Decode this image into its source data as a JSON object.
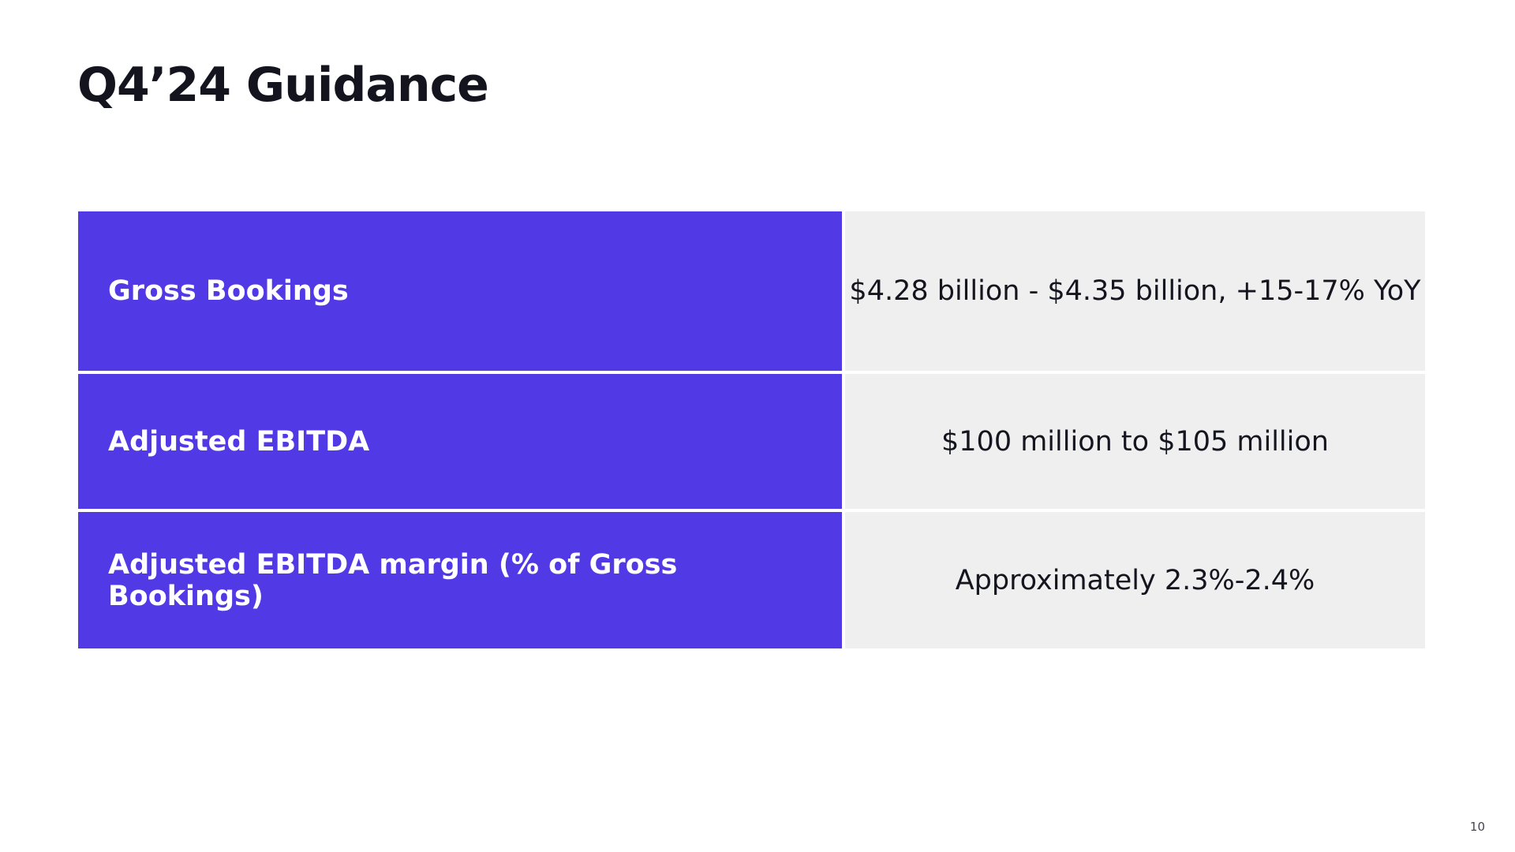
{
  "slide": {
    "title": "Q4’24 Guidance",
    "page_number": "10",
    "colors": {
      "accent": "#5139e5",
      "value_background": "#efefef",
      "text": "#14141f"
    }
  },
  "guidance": {
    "rows": [
      {
        "metric": "Gross Bookings",
        "value": "$4.28 billion - $4.35 billion, +15-17% YoY"
      },
      {
        "metric": "Adjusted EBITDA",
        "value": "$100 million to $105 million"
      },
      {
        "metric": "Adjusted EBITDA margin (% of Gross Bookings)",
        "value": "Approximately 2.3%-2.4%"
      }
    ]
  }
}
